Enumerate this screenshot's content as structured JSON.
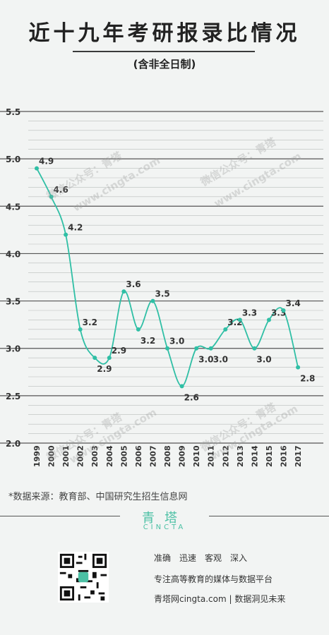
{
  "header": {
    "title": "近十九年考研报录比情况",
    "subtitle": "(含非全日制)"
  },
  "chart_data": {
    "type": "line",
    "title": "近十九年考研报录比情况",
    "subtitle": "(含非全日制)",
    "x": [
      "1999",
      "2000",
      "2001",
      "2002",
      "2003",
      "2004",
      "2005",
      "2006",
      "2007",
      "2008",
      "2009",
      "2010",
      "2011",
      "2012",
      "2013",
      "2014",
      "2015",
      "2016",
      "2017"
    ],
    "values": [
      4.9,
      4.6,
      4.2,
      3.2,
      2.9,
      2.9,
      3.6,
      3.2,
      3.5,
      3.0,
      2.6,
      3.0,
      3.0,
      3.2,
      3.3,
      3.0,
      3.3,
      3.4,
      2.8
    ],
    "value_labels": [
      "4.9",
      "4.6",
      "4.2",
      "3.2",
      "2.9",
      "2.9",
      "3.6",
      "3.2",
      "3.5",
      "3.0",
      "2.6",
      "3.0",
      "3.0",
      "3.2",
      "3.3",
      "3.0",
      "3.3",
      "3.4",
      "2.8"
    ],
    "yticks": [
      "2.0",
      "2.5",
      "3.0",
      "3.5",
      "4.0",
      "4.5",
      "5.0",
      "5.5"
    ],
    "ylim": [
      2.0,
      5.5
    ],
    "grid": true,
    "line_color": "#2fbfa5"
  },
  "watermarks": [
    "微信公众号：青塔",
    "www.cingta.com"
  ],
  "source": "*数据来源：教育部、中国研究生招生信息网",
  "footer": {
    "brand_cn": "青塔",
    "brand_en": "CINCTA",
    "tags": [
      "准确",
      "迅速",
      "客观",
      "深入"
    ],
    "slogan": "专注高等教育的媒体与数据平台",
    "site": "青塔网cingta.com | 数据洞见未来",
    "qr_icon": "qr-code-icon"
  }
}
